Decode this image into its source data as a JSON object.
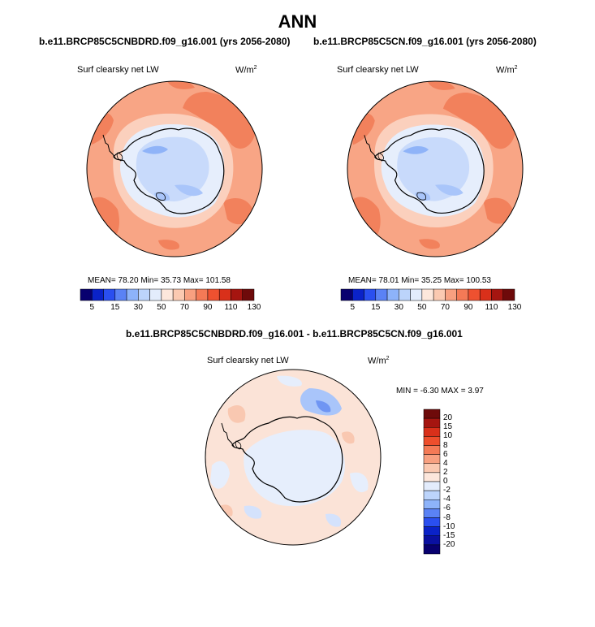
{
  "title": "ANN",
  "panels": [
    {
      "id": "left",
      "case": "b.e11.BRCP85C5CNBDRD.f09_g16.001 (yrs 2056-2080)",
      "variable": "Surf clearsky net LW",
      "units_base": "W/m",
      "units_sup": "2",
      "stats_text": "MEAN=  78.20  Min=  35.73  Max= 101.58",
      "mean": 78.2,
      "min": 35.73,
      "max": 101.58
    },
    {
      "id": "right",
      "case": "b.e11.BRCP85C5CN.f09_g16.001 (yrs 2056-2080)",
      "variable": "Surf clearsky net LW",
      "units_base": "W/m",
      "units_sup": "2",
      "stats_text": "MEAN=  78.01  Min=  35.25  Max= 100.53",
      "mean": 78.01,
      "min": 35.25,
      "max": 100.53
    },
    {
      "id": "diff",
      "case": "b.e11.BRCP85C5CNBDRD.f09_g16.001 - b.e11.BRCP85C5CN.f09_g16.001",
      "variable": "Surf clearsky net LW",
      "units_base": "W/m",
      "units_sup": "2",
      "stats_text": "MIN =  -6.30 MAX =   3.97",
      "min": -6.3,
      "max": 3.97
    }
  ],
  "colorbar_main": {
    "tick_labels": [
      "5",
      "15",
      "30",
      "50",
      "70",
      "90",
      "110",
      "130"
    ],
    "colors": [
      "#08006f",
      "#0a22c8",
      "#2a4ff0",
      "#5a82f5",
      "#8db3fa",
      "#bcd4fb",
      "#e3ecfc",
      "#fde7dc",
      "#fbc9b1",
      "#f8a080",
      "#f47a56",
      "#ee5130",
      "#d9301a",
      "#a51510",
      "#6e0a0a"
    ]
  },
  "colorbar_diff": {
    "tick_labels": [
      "20",
      "15",
      "10",
      "8",
      "6",
      "4",
      "2",
      "0",
      "-2",
      "-4",
      "-6",
      "-8",
      "-10",
      "-15",
      "-20"
    ],
    "colors": [
      "#6e0a0a",
      "#a51510",
      "#d9301a",
      "#ee4e2c",
      "#f47a56",
      "#f8a080",
      "#fbc9b1",
      "#fde7dc",
      "#e3ecfc",
      "#bcd4fb",
      "#8db3fa",
      "#5a82f5",
      "#2a4ff0",
      "#0a22c8",
      "#0a10a0",
      "#08006f"
    ]
  },
  "chart_data": [
    {
      "type": "heatmap",
      "title": "b.e11.BRCP85C5CNBDRD.f09_g16.001 (yrs 2056-2080)",
      "subtitle": "Surf clearsky net LW",
      "units": "W/m2",
      "projection": "south polar stereographic",
      "levels": [
        5,
        15,
        30,
        50,
        70,
        90,
        110,
        130
      ],
      "mean": 78.2,
      "min": 35.73,
      "max": 101.58
    },
    {
      "type": "heatmap",
      "title": "b.e11.BRCP85C5CN.f09_g16.001 (yrs 2056-2080)",
      "subtitle": "Surf clearsky net LW",
      "units": "W/m2",
      "projection": "south polar stereographic",
      "levels": [
        5,
        15,
        30,
        50,
        70,
        90,
        110,
        130
      ],
      "mean": 78.01,
      "min": 35.25,
      "max": 100.53
    },
    {
      "type": "heatmap",
      "title": "b.e11.BRCP85C5CNBDRD.f09_g16.001 - b.e11.BRCP85C5CN.f09_g16.001",
      "subtitle": "Surf clearsky net LW",
      "units": "W/m2",
      "projection": "south polar stereographic",
      "levels": [
        -20,
        -15,
        -10,
        -8,
        -6,
        -4,
        -2,
        0,
        2,
        4,
        6,
        8,
        10,
        15,
        20
      ],
      "min": -6.3,
      "max": 3.97
    }
  ]
}
